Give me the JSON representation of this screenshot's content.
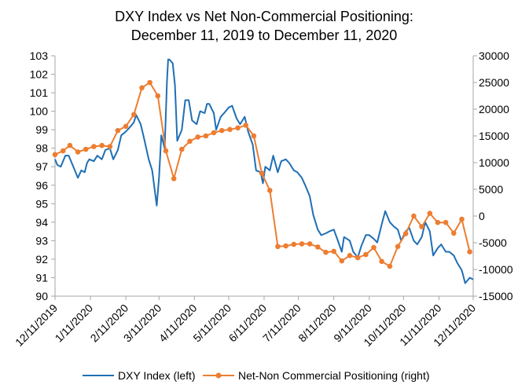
{
  "chart_data": {
    "type": "line",
    "title_lines": [
      "DXY Index vs Net Non-Commercial Positioning:",
      "December 11, 2019 to December 11, 2020"
    ],
    "x_range": [
      "2019-12-11",
      "2020-12-11"
    ],
    "x_tick_labels": [
      "12/11/2019",
      "1/11/2020",
      "2/11/2020",
      "3/11/2020",
      "4/11/2020",
      "5/11/2020",
      "6/11/2020",
      "7/11/2020",
      "8/11/2020",
      "9/11/2020",
      "10/11/2020",
      "11/11/2020",
      "12/11/2020"
    ],
    "x_tick_dates": [
      "2019-12-11",
      "2020-01-11",
      "2020-02-11",
      "2020-03-11",
      "2020-04-11",
      "2020-05-11",
      "2020-06-11",
      "2020-07-11",
      "2020-08-11",
      "2020-09-11",
      "2020-10-11",
      "2020-11-11",
      "2020-12-11"
    ],
    "y_left": {
      "range": [
        90,
        103
      ],
      "ticks": [
        90,
        91,
        92,
        93,
        94,
        95,
        96,
        97,
        98,
        99,
        100,
        101,
        102,
        103
      ]
    },
    "y_right": {
      "range": [
        -15000,
        30000
      ],
      "ticks": [
        -15000,
        -10000,
        -5000,
        0,
        5000,
        10000,
        15000,
        20000,
        25000,
        30000
      ]
    },
    "grid": false,
    "legend_position": "bottom",
    "series": [
      {
        "name": "DXY Index (left)",
        "axis": "left",
        "color": "#1f6fb5",
        "points": [
          [
            "2019-12-11",
            97.4
          ],
          [
            "2019-12-13",
            97.1
          ],
          [
            "2019-12-16",
            97.0
          ],
          [
            "2019-12-18",
            97.3
          ],
          [
            "2019-12-20",
            97.6
          ],
          [
            "2019-12-23",
            97.6
          ],
          [
            "2019-12-27",
            97.0
          ],
          [
            "2019-12-31",
            96.4
          ],
          [
            "2020-01-03",
            96.8
          ],
          [
            "2020-01-06",
            96.7
          ],
          [
            "2020-01-08",
            97.2
          ],
          [
            "2020-01-10",
            97.4
          ],
          [
            "2020-01-14",
            97.3
          ],
          [
            "2020-01-17",
            97.6
          ],
          [
            "2020-01-21",
            97.4
          ],
          [
            "2020-01-24",
            97.9
          ],
          [
            "2020-01-28",
            98.0
          ],
          [
            "2020-01-31",
            97.4
          ],
          [
            "2020-02-04",
            97.9
          ],
          [
            "2020-02-07",
            98.7
          ],
          [
            "2020-02-11",
            98.9
          ],
          [
            "2020-02-14",
            99.1
          ],
          [
            "2020-02-18",
            99.4
          ],
          [
            "2020-02-20",
            99.8
          ],
          [
            "2020-02-24",
            99.3
          ],
          [
            "2020-02-27",
            98.5
          ],
          [
            "2020-03-02",
            97.4
          ],
          [
            "2020-03-05",
            96.8
          ],
          [
            "2020-03-09",
            94.9
          ],
          [
            "2020-03-11",
            96.4
          ],
          [
            "2020-03-13",
            98.7
          ],
          [
            "2020-03-16",
            98.0
          ],
          [
            "2020-03-18",
            101.6
          ],
          [
            "2020-03-19",
            102.8
          ],
          [
            "2020-03-20",
            102.8
          ],
          [
            "2020-03-23",
            102.6
          ],
          [
            "2020-03-25",
            101.4
          ],
          [
            "2020-03-27",
            98.4
          ],
          [
            "2020-03-31",
            99.0
          ],
          [
            "2020-04-03",
            100.6
          ],
          [
            "2020-04-06",
            100.6
          ],
          [
            "2020-04-09",
            99.5
          ],
          [
            "2020-04-13",
            99.3
          ],
          [
            "2020-04-16",
            100.0
          ],
          [
            "2020-04-20",
            99.9
          ],
          [
            "2020-04-22",
            100.4
          ],
          [
            "2020-04-24",
            100.4
          ],
          [
            "2020-04-28",
            99.9
          ],
          [
            "2020-04-30",
            99.0
          ],
          [
            "2020-05-04",
            99.7
          ],
          [
            "2020-05-07",
            99.9
          ],
          [
            "2020-05-11",
            100.2
          ],
          [
            "2020-05-14",
            100.3
          ],
          [
            "2020-05-18",
            99.6
          ],
          [
            "2020-05-21",
            99.3
          ],
          [
            "2020-05-25",
            99.7
          ],
          [
            "2020-05-28",
            98.9
          ],
          [
            "2020-06-01",
            98.2
          ],
          [
            "2020-06-04",
            96.8
          ],
          [
            "2020-06-08",
            96.7
          ],
          [
            "2020-06-10",
            96.1
          ],
          [
            "2020-06-12",
            97.0
          ],
          [
            "2020-06-16",
            96.8
          ],
          [
            "2020-06-19",
            97.6
          ],
          [
            "2020-06-23",
            96.7
          ],
          [
            "2020-06-26",
            97.3
          ],
          [
            "2020-06-30",
            97.4
          ],
          [
            "2020-07-03",
            97.2
          ],
          [
            "2020-07-07",
            96.8
          ],
          [
            "2020-07-10",
            96.7
          ],
          [
            "2020-07-14",
            96.4
          ],
          [
            "2020-07-17",
            96.0
          ],
          [
            "2020-07-21",
            95.4
          ],
          [
            "2020-07-24",
            94.4
          ],
          [
            "2020-07-28",
            93.6
          ],
          [
            "2020-07-31",
            93.3
          ],
          [
            "2020-08-04",
            93.4
          ],
          [
            "2020-08-07",
            93.5
          ],
          [
            "2020-08-11",
            93.6
          ],
          [
            "2020-08-14",
            93.1
          ],
          [
            "2020-08-18",
            92.4
          ],
          [
            "2020-08-20",
            93.2
          ],
          [
            "2020-08-25",
            93.0
          ],
          [
            "2020-08-28",
            92.4
          ],
          [
            "2020-09-01",
            92.1
          ],
          [
            "2020-09-04",
            92.7
          ],
          [
            "2020-09-08",
            93.3
          ],
          [
            "2020-09-11",
            93.3
          ],
          [
            "2020-09-15",
            93.1
          ],
          [
            "2020-09-18",
            92.9
          ],
          [
            "2020-09-22",
            93.9
          ],
          [
            "2020-09-25",
            94.6
          ],
          [
            "2020-09-29",
            94.0
          ],
          [
            "2020-10-02",
            93.8
          ],
          [
            "2020-10-06",
            93.6
          ],
          [
            "2020-10-09",
            93.0
          ],
          [
            "2020-10-13",
            93.5
          ],
          [
            "2020-10-16",
            93.7
          ],
          [
            "2020-10-20",
            93.0
          ],
          [
            "2020-10-23",
            92.8
          ],
          [
            "2020-10-27",
            93.2
          ],
          [
            "2020-10-30",
            94.0
          ],
          [
            "2020-11-03",
            93.5
          ],
          [
            "2020-11-06",
            92.2
          ],
          [
            "2020-11-10",
            92.6
          ],
          [
            "2020-11-13",
            92.8
          ],
          [
            "2020-11-17",
            92.4
          ],
          [
            "2020-11-20",
            92.4
          ],
          [
            "2020-11-24",
            92.2
          ],
          [
            "2020-11-27",
            91.8
          ],
          [
            "2020-12-01",
            91.4
          ],
          [
            "2020-12-04",
            90.7
          ],
          [
            "2020-12-08",
            91.0
          ],
          [
            "2020-12-11",
            90.9
          ]
        ]
      },
      {
        "name": "Net-Non Commercial Positioning (right)",
        "axis": "right",
        "color": "#ed7d31",
        "points": [
          [
            "2019-12-11",
            11500
          ],
          [
            "2019-12-18",
            12200
          ],
          [
            "2019-12-24",
            13200
          ],
          [
            "2019-12-31",
            12000
          ],
          [
            "2020-01-07",
            12500
          ],
          [
            "2020-01-14",
            13000
          ],
          [
            "2020-01-21",
            13200
          ],
          [
            "2020-01-28",
            13000
          ],
          [
            "2020-02-04",
            16000
          ],
          [
            "2020-02-11",
            16800
          ],
          [
            "2020-02-18",
            19000
          ],
          [
            "2020-02-25",
            24000
          ],
          [
            "2020-03-03",
            25000
          ],
          [
            "2020-03-10",
            22500
          ],
          [
            "2020-03-17",
            12200
          ],
          [
            "2020-03-24",
            7000
          ],
          [
            "2020-03-31",
            12500
          ],
          [
            "2020-04-07",
            14000
          ],
          [
            "2020-04-14",
            14800
          ],
          [
            "2020-04-21",
            15000
          ],
          [
            "2020-04-28",
            15600
          ],
          [
            "2020-05-05",
            16000
          ],
          [
            "2020-05-12",
            16200
          ],
          [
            "2020-05-19",
            16500
          ],
          [
            "2020-05-26",
            17000
          ],
          [
            "2020-06-02",
            15000
          ],
          [
            "2020-06-09",
            8000
          ],
          [
            "2020-06-16",
            4800
          ],
          [
            "2020-06-23",
            -5700
          ],
          [
            "2020-06-30",
            -5600
          ],
          [
            "2020-07-07",
            -5300
          ],
          [
            "2020-07-14",
            -5200
          ],
          [
            "2020-07-21",
            -5200
          ],
          [
            "2020-07-28",
            -5800
          ],
          [
            "2020-08-04",
            -6800
          ],
          [
            "2020-08-11",
            -6600
          ],
          [
            "2020-08-18",
            -8400
          ],
          [
            "2020-08-25",
            -7400
          ],
          [
            "2020-09-01",
            -7800
          ],
          [
            "2020-09-08",
            -7200
          ],
          [
            "2020-09-15",
            -5900
          ],
          [
            "2020-09-22",
            -8500
          ],
          [
            "2020-09-29",
            -9400
          ],
          [
            "2020-10-06",
            -5700
          ],
          [
            "2020-10-13",
            -3300
          ],
          [
            "2020-10-20",
            0
          ],
          [
            "2020-10-27",
            -2000
          ],
          [
            "2020-11-03",
            500
          ],
          [
            "2020-11-10",
            -1200
          ],
          [
            "2020-11-17",
            -1200
          ],
          [
            "2020-11-24",
            -3200
          ],
          [
            "2020-12-01",
            -600
          ],
          [
            "2020-12-08",
            -6700
          ]
        ]
      }
    ]
  }
}
